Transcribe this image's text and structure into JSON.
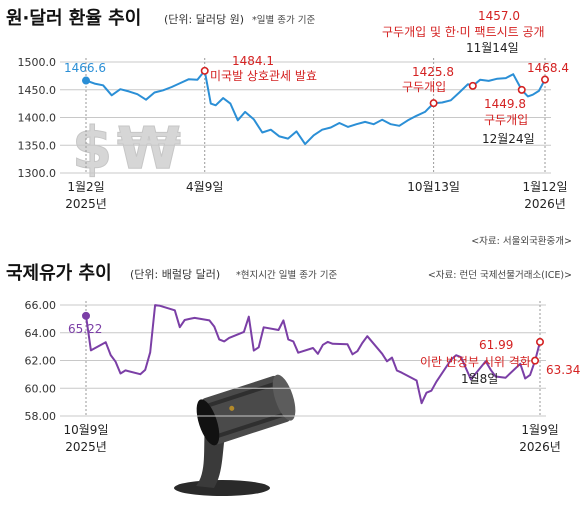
{
  "chart_data": [
    {
      "type": "line",
      "title": "원·달러 환율 추이",
      "subtitle": "(단위: 달러당 원)",
      "note": "*일별 종가 기준",
      "source": "<자료: 서울외국환중개>",
      "color": "#2b8fd6",
      "ylim": [
        1300,
        1500
      ],
      "yticks": [
        "1300.0",
        "1350.0",
        "1400.0",
        "1450.0",
        "1500.0"
      ],
      "xticks": [
        {
          "date": "2025-01-02",
          "lines": [
            "1월2일",
            "2025년"
          ]
        },
        {
          "date": "2025-04-09",
          "lines": [
            "4월9일"
          ]
        },
        {
          "date": "2025-10-13",
          "lines": [
            "10월13일"
          ]
        },
        {
          "date": "2026-01-12",
          "lines": [
            "1월12일",
            "2026년"
          ]
        }
      ],
      "markers": [
        "2025-01-02",
        "2025-04-09",
        "2025-10-13",
        "2025-11-14",
        "2025-12-24",
        "2026-01-12"
      ],
      "labels": {
        "first": "1466.6",
        "apr_value": "1484.1",
        "apr_text": "미국발 상호관세 발효",
        "oct_value": "1425.8",
        "oct_text": "구두개입",
        "nov_value": "1457.0",
        "nov_text": "구두개입 및 한·미 팩트시트 공개",
        "nov_date": "11월14일",
        "dec_value": "1449.8",
        "dec_text": "구두개입",
        "dec_date": "12월24일",
        "last": "1468.4"
      },
      "series": [
        {
          "points": [
            [
              "2025-01-02",
              1466.6
            ],
            [
              "2025-01-09",
              1461
            ],
            [
              "2025-01-16",
              1458
            ],
            [
              "2025-01-23",
              1440
            ],
            [
              "2025-01-30",
              1451
            ],
            [
              "2025-02-06",
              1447
            ],
            [
              "2025-02-13",
              1442
            ],
            [
              "2025-02-20",
              1432
            ],
            [
              "2025-02-27",
              1445
            ],
            [
              "2025-03-06",
              1449
            ],
            [
              "2025-03-13",
              1455
            ],
            [
              "2025-03-20",
              1462
            ],
            [
              "2025-03-27",
              1469
            ],
            [
              "2025-04-03",
              1468
            ],
            [
              "2025-04-09",
              1484.1
            ],
            [
              "2025-04-14",
              1425
            ],
            [
              "2025-04-18",
              1422
            ],
            [
              "2025-04-24",
              1435
            ],
            [
              "2025-04-30",
              1425
            ],
            [
              "2025-05-06",
              1395
            ],
            [
              "2025-05-12",
              1410
            ],
            [
              "2025-05-19",
              1397
            ],
            [
              "2025-05-26",
              1373
            ],
            [
              "2025-06-02",
              1378
            ],
            [
              "2025-06-09",
              1366
            ],
            [
              "2025-06-16",
              1362
            ],
            [
              "2025-06-23",
              1375
            ],
            [
              "2025-06-30",
              1352
            ],
            [
              "2025-07-07",
              1368
            ],
            [
              "2025-07-14",
              1378
            ],
            [
              "2025-07-21",
              1382
            ],
            [
              "2025-07-28",
              1390
            ],
            [
              "2025-08-04",
              1383
            ],
            [
              "2025-08-11",
              1388
            ],
            [
              "2025-08-18",
              1392
            ],
            [
              "2025-08-25",
              1388
            ],
            [
              "2025-09-01",
              1396
            ],
            [
              "2025-09-08",
              1388
            ],
            [
              "2025-09-15",
              1385
            ],
            [
              "2025-09-22",
              1395
            ],
            [
              "2025-09-29",
              1403
            ],
            [
              "2025-10-06",
              1410
            ],
            [
              "2025-10-13",
              1425.8
            ],
            [
              "2025-10-20",
              1427
            ],
            [
              "2025-10-27",
              1431
            ],
            [
              "2025-11-03",
              1445
            ],
            [
              "2025-11-10",
              1460
            ],
            [
              "2025-11-14",
              1457.0
            ],
            [
              "2025-11-20",
              1468
            ],
            [
              "2025-11-27",
              1466
            ],
            [
              "2025-12-04",
              1470
            ],
            [
              "2025-12-11",
              1471
            ],
            [
              "2025-12-17",
              1478
            ],
            [
              "2025-12-24",
              1449.8
            ],
            [
              "2025-12-29",
              1438
            ],
            [
              "2026-01-02",
              1441
            ],
            [
              "2026-01-07",
              1448
            ],
            [
              "2026-01-12",
              1468.4
            ]
          ]
        }
      ]
    },
    {
      "type": "line",
      "title": "국제유가 추이",
      "subtitle": "(단위: 배럴당 달러)",
      "note": "*현지시간 일별 종가 기준",
      "source": "<자료: 런던 국제선물거래소(ICE)>",
      "color": "#7b3fa6",
      "ylim": [
        58,
        66
      ],
      "yticks": [
        "58.00",
        "60.00",
        "62.00",
        "64.00",
        "66.00"
      ],
      "xticks": [
        {
          "date": "2025-10-09",
          "lines": [
            "10월9일",
            "2025년"
          ]
        },
        {
          "date": "2026-01-09",
          "lines": [
            "1월9일",
            "2026년"
          ]
        }
      ],
      "markers": [
        "2025-10-09",
        "2026-01-08",
        "2026-01-09"
      ],
      "labels": {
        "first": "65.22",
        "jan8_value": "61.99",
        "jan8_text": "이란 반정부 시위 격화",
        "jan8_date": "1월8일",
        "last": "63.34"
      },
      "series": [
        {
          "points": [
            [
              "2025-10-09",
              65.22
            ],
            [
              "2025-10-10",
              62.73
            ],
            [
              "2025-10-13",
              63.32
            ],
            [
              "2025-10-14",
              62.39
            ],
            [
              "2025-10-15",
              61.91
            ],
            [
              "2025-10-16",
              61.06
            ],
            [
              "2025-10-17",
              61.29
            ],
            [
              "2025-10-20",
              61.01
            ],
            [
              "2025-10-21",
              61.32
            ],
            [
              "2025-10-22",
              62.59
            ],
            [
              "2025-10-23",
              65.99
            ],
            [
              "2025-10-24",
              65.94
            ],
            [
              "2025-10-27",
              65.62
            ],
            [
              "2025-10-28",
              64.4
            ],
            [
              "2025-10-29",
              64.92
            ],
            [
              "2025-10-30",
              65.0
            ],
            [
              "2025-10-31",
              65.07
            ],
            [
              "2025-11-03",
              64.89
            ],
            [
              "2025-11-04",
              64.44
            ],
            [
              "2025-11-05",
              63.52
            ],
            [
              "2025-11-06",
              63.38
            ],
            [
              "2025-11-07",
              63.63
            ],
            [
              "2025-11-10",
              64.06
            ],
            [
              "2025-11-11",
              65.16
            ],
            [
              "2025-11-12",
              62.71
            ],
            [
              "2025-11-13",
              62.95
            ],
            [
              "2025-11-14",
              64.39
            ],
            [
              "2025-11-17",
              64.2
            ],
            [
              "2025-11-18",
              64.89
            ],
            [
              "2025-11-19",
              63.51
            ],
            [
              "2025-11-20",
              63.38
            ],
            [
              "2025-11-21",
              62.56
            ],
            [
              "2025-11-24",
              62.9
            ],
            [
              "2025-11-25",
              62.48
            ],
            [
              "2025-11-26",
              63.13
            ],
            [
              "2025-11-27",
              63.34
            ],
            [
              "2025-11-28",
              63.2
            ],
            [
              "2025-12-01",
              63.17
            ],
            [
              "2025-12-02",
              62.45
            ],
            [
              "2025-12-03",
              62.67
            ],
            [
              "2025-12-04",
              63.26
            ],
            [
              "2025-12-05",
              63.75
            ],
            [
              "2025-12-08",
              62.49
            ],
            [
              "2025-12-09",
              61.94
            ],
            [
              "2025-12-10",
              62.21
            ],
            [
              "2025-12-11",
              61.28
            ],
            [
              "2025-12-12",
              61.12
            ],
            [
              "2025-12-15",
              60.56
            ],
            [
              "2025-12-16",
              58.92
            ],
            [
              "2025-12-17",
              59.68
            ],
            [
              "2025-12-18",
              59.82
            ],
            [
              "2025-12-19",
              60.47
            ],
            [
              "2025-12-22",
              62.07
            ],
            [
              "2025-12-23",
              62.38
            ],
            [
              "2025-12-24",
              62.24
            ],
            [
              "2025-12-26",
              60.64
            ],
            [
              "2025-12-29",
              61.94
            ],
            [
              "2025-12-30",
              61.33
            ],
            [
              "2025-12-31",
              60.85
            ],
            [
              "2026-01-02",
              60.75
            ],
            [
              "2026-01-05",
              61.76
            ],
            [
              "2026-01-06",
              60.7
            ],
            [
              "2026-01-07",
              60.96
            ],
            [
              "2026-01-08",
              61.99
            ],
            [
              "2026-01-09",
              63.34
            ]
          ]
        }
      ]
    }
  ]
}
